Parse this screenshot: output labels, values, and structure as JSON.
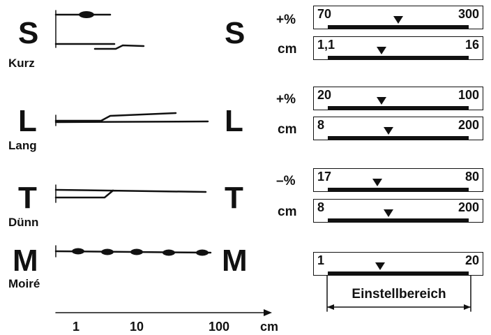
{
  "rows": [
    {
      "id": "s",
      "letter": "S",
      "label": "Kurz",
      "settings": [
        {
          "unit": "+%",
          "min": "70",
          "max": "300",
          "marker": 0.5
        },
        {
          "unit": "cm",
          "min": "1,1",
          "max": "16",
          "marker": 0.38
        }
      ]
    },
    {
      "id": "l",
      "letter": "L",
      "label": "Lang",
      "settings": [
        {
          "unit": "+%",
          "min": "20",
          "max": "100",
          "marker": 0.38
        },
        {
          "unit": "cm",
          "min": "8",
          "max": "200",
          "marker": 0.43
        }
      ]
    },
    {
      "id": "t",
      "letter": "T",
      "label": "Dünn",
      "settings": [
        {
          "unit": "–%",
          "min": "17",
          "max": "80",
          "marker": 0.35
        },
        {
          "unit": "cm",
          "min": "8",
          "max": "200",
          "marker": 0.43
        }
      ]
    },
    {
      "id": "m",
      "letter": "M",
      "label": "Moiré",
      "settings": [
        {
          "unit": "",
          "min": "1",
          "max": "20",
          "marker": 0.37
        }
      ]
    }
  ],
  "range_label": "Einstellbereich",
  "axis": {
    "ticks": [
      "1",
      "10",
      "100"
    ],
    "unit": "cm"
  }
}
